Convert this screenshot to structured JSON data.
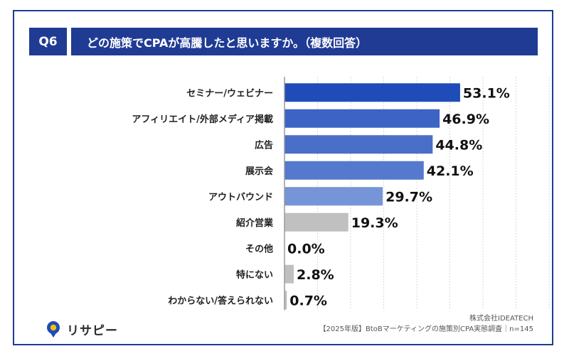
{
  "header": {
    "badge": "Q6",
    "question": "どの施策でCPAが高騰したと思いますか。（複数回答）"
  },
  "chart_data": {
    "type": "bar",
    "orientation": "horizontal",
    "categories": [
      "セミナー/ウェビナー",
      "アフィリエイト/外部メディア掲載",
      "広告",
      "展示会",
      "アウトバウンド",
      "紹介営業",
      "その他",
      "特にない",
      "わからない/答えられない"
    ],
    "values": [
      53.1,
      46.9,
      44.8,
      42.1,
      29.7,
      19.3,
      0.0,
      2.8,
      0.7
    ],
    "value_labels": [
      "53.1%",
      "46.9%",
      "44.8%",
      "42.1%",
      "29.7%",
      "19.3%",
      "0.0%",
      "2.8%",
      "0.7%"
    ],
    "xlim": [
      0,
      100
    ],
    "grid": true,
    "colors": [
      "#1f4cb8",
      "#3d63c4",
      "#4a6fc9",
      "#5479cd",
      "#7694d8",
      "#c0c0c0",
      "#c0c0c0",
      "#c0c0c0",
      "#c0c0c0"
    ]
  },
  "footer": {
    "logo_text": "リサピー",
    "logo_icon": "pin-icon",
    "company": "株式会社IDEATECH",
    "survey": "【2025年版】BtoBマーケティングの施策別CPA実態調査｜n=145"
  }
}
